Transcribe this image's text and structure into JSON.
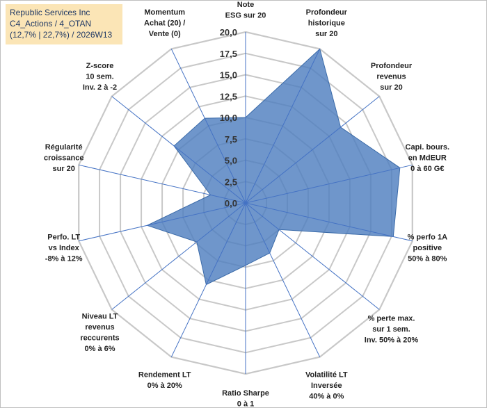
{
  "title_box": {
    "line1": "Republic Services Inc",
    "line2": "C4_Actions / 4_OTAN",
    "line3": "(12,7% | 22,7%) / 2026W13"
  },
  "colors": {
    "fill": "#4f7fbf",
    "edge": "#3a6aa8",
    "grid": "#c8c8c8",
    "spoke": "#4472c4",
    "title_bg": "#fbe5b6"
  },
  "chart_data": {
    "type": "radar",
    "title": "Republic Services Inc",
    "rmin": 0,
    "rmax": 20,
    "ticks": [
      "0,0",
      "2,5",
      "5,0",
      "7,5",
      "10,0",
      "12,5",
      "15,0",
      "17,5",
      "20,0"
    ],
    "categories": [
      [
        "Note",
        "ESG sur 20"
      ],
      [
        "Profondeur",
        "historique",
        "sur 20"
      ],
      [
        "Profondeur",
        "revenus",
        "sur 20"
      ],
      [
        "Capi. bours.",
        "en MdEUR",
        "0 à 60 G€"
      ],
      [
        "% perfo 1A",
        "positive",
        "50% à 80%"
      ],
      [
        "% perte max.",
        "sur 1 sem.",
        "Inv. 50% à 20%"
      ],
      [
        "Volatilité LT",
        "Inversée",
        "40% à 0%"
      ],
      [
        "Ratio Sharpe",
        "0 à 1"
      ],
      [
        "Rendement LT",
        "0% à 20%"
      ],
      [
        "Niveau LT",
        "revenus",
        "reccurents",
        "0% à 6%"
      ],
      [
        "Perfo. LT",
        "vs Index",
        "-8% à 12%"
      ],
      [
        "Régularité",
        "croissance",
        "sur 20"
      ],
      [
        "Z-score",
        "10 sem.",
        "Inv. 2 à -2"
      ],
      [
        "Momentum",
        "Achat (20) /",
        "Vente (0)"
      ]
    ],
    "series": [
      {
        "name": "Republic Services Inc",
        "values": [
          10.0,
          20.0,
          14.2,
          18.5,
          17.7,
          5.0,
          6.5,
          7.3,
          10.6,
          7.3,
          11.8,
          4.2,
          10.7,
          11.0
        ]
      }
    ]
  }
}
